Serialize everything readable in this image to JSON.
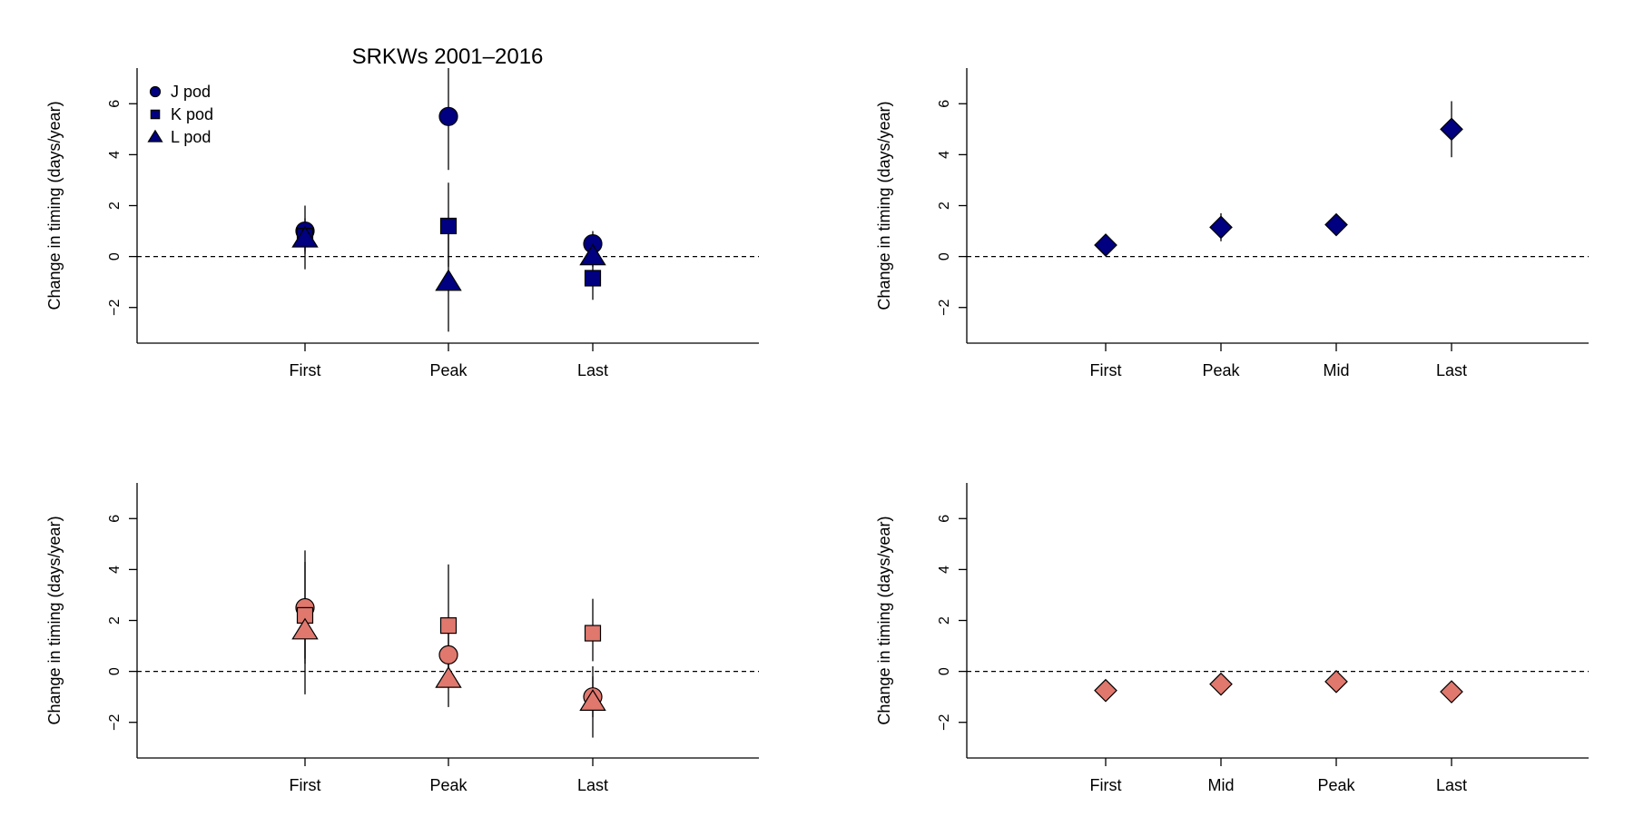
{
  "figure": {
    "title": "SRKWs 2001–2016",
    "colors": {
      "blue": "#000080",
      "salmon": "#e0786e",
      "axis": "#000000"
    }
  },
  "chart_data": [
    {
      "type": "scatter",
      "panel": "top-left",
      "categories": [
        "First",
        "Peak",
        "Last"
      ],
      "ylabel": "Change in timing (days/year)",
      "ylim": [
        -3.4,
        7.4
      ],
      "yticks": [
        -2,
        0,
        2,
        4,
        6
      ],
      "reference_line": 0,
      "color": "#000080",
      "legend": {
        "placement": "top-left",
        "entries": [
          {
            "label": "J pod",
            "shape": "circle"
          },
          {
            "label": "K pod",
            "shape": "square"
          },
          {
            "label": "L pod",
            "shape": "triangle"
          }
        ]
      },
      "series": [
        {
          "name": "J pod",
          "shape": "circle",
          "values": [
            1.0,
            5.5,
            0.5
          ],
          "lower": [
            -0.5,
            3.4,
            -0.3
          ],
          "upper": [
            2.0,
            7.4,
            1.0
          ]
        },
        {
          "name": "K pod",
          "shape": "square",
          "values": [
            0.8,
            1.2,
            -0.85
          ],
          "lower": [
            0.1,
            -0.4,
            -1.7
          ],
          "upper": [
            1.5,
            2.9,
            0.0
          ]
        },
        {
          "name": "L pod",
          "shape": "triangle",
          "values": [
            0.7,
            -1.0,
            0.0
          ],
          "lower": [
            0.2,
            -2.95,
            -0.4
          ],
          "upper": [
            1.2,
            1.0,
            0.4
          ]
        }
      ]
    },
    {
      "type": "scatter",
      "panel": "top-right",
      "categories": [
        "First",
        "Peak",
        "Mid",
        "Last"
      ],
      "ylabel": "Change in timing (days/year)",
      "ylim": [
        -3.4,
        7.4
      ],
      "yticks": [
        -2,
        0,
        2,
        4,
        6
      ],
      "reference_line": 0,
      "color": "#000080",
      "series": [
        {
          "shape": "diamond",
          "values": [
            0.45,
            1.15,
            1.25,
            5.0
          ],
          "lower": [
            0.3,
            0.6,
            1.05,
            3.9
          ],
          "upper": [
            0.6,
            1.7,
            1.45,
            6.1
          ]
        }
      ]
    },
    {
      "type": "scatter",
      "panel": "bottom-left",
      "categories": [
        "First",
        "Peak",
        "Last"
      ],
      "ylabel": "Change in timing (days/year)",
      "ylim": [
        -3.4,
        7.4
      ],
      "yticks": [
        -2,
        0,
        2,
        4,
        6
      ],
      "reference_line": 0,
      "color": "#e0786e",
      "series": [
        {
          "name": "J pod",
          "shape": "circle",
          "values": [
            2.5,
            0.65,
            -1.0
          ],
          "lower": [
            0.3,
            -0.3,
            -1.8
          ],
          "upper": [
            4.75,
            1.6,
            -0.2
          ]
        },
        {
          "name": "K pod",
          "shape": "square",
          "values": [
            2.2,
            1.8,
            1.5
          ],
          "lower": [
            -0.9,
            -0.6,
            0.4
          ],
          "upper": [
            4.3,
            4.2,
            2.85
          ]
        },
        {
          "name": "L pod",
          "shape": "triangle",
          "values": [
            1.6,
            -0.3,
            -1.2
          ],
          "lower": [
            0.5,
            -1.4,
            -2.6
          ],
          "upper": [
            2.7,
            0.8,
            0.2
          ]
        }
      ]
    },
    {
      "type": "scatter",
      "panel": "bottom-right",
      "categories": [
        "First",
        "Mid",
        "Peak",
        "Last"
      ],
      "ylabel": "Change in timing (days/year)",
      "ylim": [
        -3.4,
        7.4
      ],
      "yticks": [
        -2,
        0,
        2,
        4,
        6
      ],
      "reference_line": 0,
      "color": "#e0786e",
      "series": [
        {
          "shape": "diamond",
          "values": [
            -0.75,
            -0.5,
            -0.4,
            -0.8
          ],
          "lower": [
            -0.85,
            -0.6,
            -0.5,
            -0.9
          ],
          "upper": [
            -0.65,
            -0.4,
            -0.3,
            -0.7
          ]
        }
      ]
    }
  ]
}
